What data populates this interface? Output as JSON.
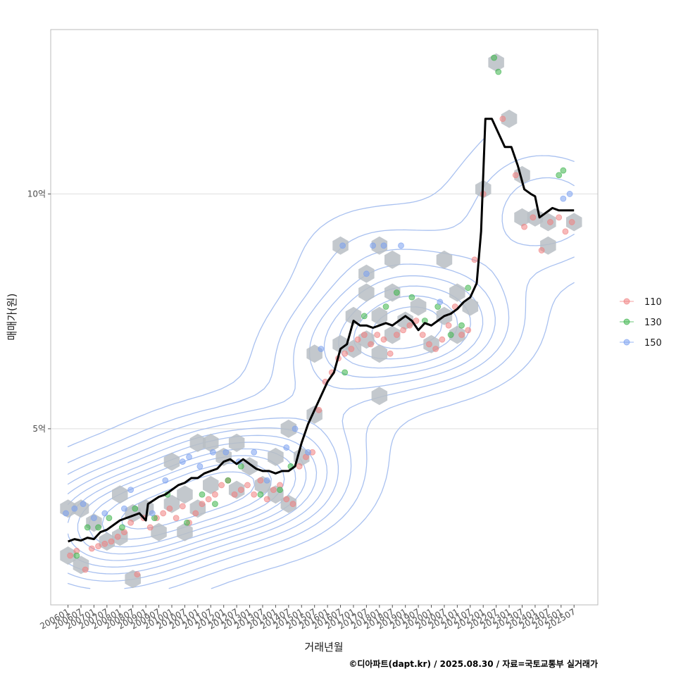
{
  "chart_data": {
    "type": "scatter",
    "xlabel": "거래년월",
    "ylabel": "매매가(원)",
    "caption": "©디아파트(dapt.kr) / 2025.08.30 / 자료=국토교통부 실거래가",
    "xlim": [
      "2005-05",
      "2026-06"
    ],
    "ylim": [
      1.25,
      13.5
    ],
    "y_ticks": [
      {
        "value": 5,
        "label": "5억"
      },
      {
        "value": 10,
        "label": "10억"
      }
    ],
    "x_tick_labels": [
      "200601",
      "200607",
      "200701",
      "200707",
      "200801",
      "200807",
      "200901",
      "200907",
      "201001",
      "201007",
      "201101",
      "201107",
      "201201",
      "201207",
      "201301",
      "201307",
      "201401",
      "201407",
      "201501",
      "201507",
      "201601",
      "201607",
      "201701",
      "201707",
      "201801",
      "201807",
      "201901",
      "201907",
      "202001",
      "202007",
      "202101",
      "202107",
      "202201",
      "202207",
      "202301",
      "202307",
      "202401",
      "202407",
      "202501",
      "202507"
    ],
    "grid": true,
    "legend": {
      "position": "right",
      "entries": [
        "110",
        "130",
        "150"
      ]
    },
    "colors": {
      "110": "#f08080",
      "130": "#3cb44b",
      "150": "#7aa0f0",
      "trend": "#000000",
      "hex": "#b9bec4",
      "contour": "#a9c1f0",
      "grid": "#dedede",
      "panel_border": "#bbbbbb"
    },
    "trend_line": [
      [
        "2006-01",
        2.6
      ],
      [
        "2006-04",
        2.65
      ],
      [
        "2006-07",
        2.62
      ],
      [
        "2006-10",
        2.68
      ],
      [
        "2007-01",
        2.65
      ],
      [
        "2007-04",
        2.8
      ],
      [
        "2007-07",
        2.85
      ],
      [
        "2007-10",
        2.95
      ],
      [
        "2008-01",
        3.05
      ],
      [
        "2008-04",
        3.1
      ],
      [
        "2008-07",
        3.15
      ],
      [
        "2008-10",
        3.2
      ],
      [
        "2009-01",
        3.05
      ],
      [
        "2009-02",
        3.4
      ],
      [
        "2009-07",
        3.55
      ],
      [
        "2009-10",
        3.6
      ],
      [
        "2010-01",
        3.7
      ],
      [
        "2010-04",
        3.8
      ],
      [
        "2010-07",
        3.85
      ],
      [
        "2010-10",
        3.95
      ],
      [
        "2011-01",
        3.95
      ],
      [
        "2011-04",
        4.05
      ],
      [
        "2011-07",
        4.1
      ],
      [
        "2011-10",
        4.15
      ],
      [
        "2012-01",
        4.3
      ],
      [
        "2012-04",
        4.35
      ],
      [
        "2012-07",
        4.25
      ],
      [
        "2012-10",
        4.35
      ],
      [
        "2013-01",
        4.25
      ],
      [
        "2013-04",
        4.15
      ],
      [
        "2013-07",
        4.1
      ],
      [
        "2013-10",
        4.1
      ],
      [
        "2014-01",
        4.05
      ],
      [
        "2014-04",
        4.1
      ],
      [
        "2014-07",
        4.1
      ],
      [
        "2014-10",
        4.2
      ],
      [
        "2015-01",
        4.7
      ],
      [
        "2015-04",
        5.1
      ],
      [
        "2015-07",
        5.4
      ],
      [
        "2015-10",
        5.7
      ],
      [
        "2016-01",
        6.0
      ],
      [
        "2016-04",
        6.2
      ],
      [
        "2016-07",
        6.7
      ],
      [
        "2016-10",
        6.8
      ],
      [
        "2017-01",
        7.3
      ],
      [
        "2017-04",
        7.2
      ],
      [
        "2017-07",
        7.2
      ],
      [
        "2017-10",
        7.15
      ],
      [
        "2018-01",
        7.2
      ],
      [
        "2018-04",
        7.25
      ],
      [
        "2018-07",
        7.2
      ],
      [
        "2018-10",
        7.3
      ],
      [
        "2019-01",
        7.4
      ],
      [
        "2019-04",
        7.3
      ],
      [
        "2019-07",
        7.1
      ],
      [
        "2019-10",
        7.25
      ],
      [
        "2020-01",
        7.2
      ],
      [
        "2020-04",
        7.3
      ],
      [
        "2020-07",
        7.4
      ],
      [
        "2020-10",
        7.45
      ],
      [
        "2021-01",
        7.55
      ],
      [
        "2021-04",
        7.7
      ],
      [
        "2021-07",
        7.8
      ],
      [
        "2021-10",
        8.1
      ],
      [
        "2021-12",
        9.2
      ],
      [
        "2022-02",
        11.6
      ],
      [
        "2022-05",
        11.6
      ],
      [
        "2022-08",
        11.3
      ],
      [
        "2022-11",
        11.0
      ],
      [
        "2023-02",
        11.0
      ],
      [
        "2023-05",
        10.6
      ],
      [
        "2023-08",
        10.1
      ],
      [
        "2023-11",
        10.0
      ],
      [
        "2024-01",
        9.95
      ],
      [
        "2024-03",
        9.5
      ],
      [
        "2024-06",
        9.6
      ],
      [
        "2024-09",
        9.7
      ],
      [
        "2024-12",
        9.65
      ],
      [
        "2025-03",
        9.65
      ],
      [
        "2025-07",
        9.65
      ]
    ],
    "hexbins": [
      [
        "2006-01",
        2.3
      ],
      [
        "2006-01",
        3.3
      ],
      [
        "2006-07",
        2.1
      ],
      [
        "2006-07",
        3.3
      ],
      [
        "2007-01",
        3.0
      ],
      [
        "2007-07",
        2.6
      ],
      [
        "2008-01",
        2.7
      ],
      [
        "2008-01",
        3.6
      ],
      [
        "2008-07",
        1.8
      ],
      [
        "2008-07",
        3.2
      ],
      [
        "2009-01",
        3.3
      ],
      [
        "2009-07",
        2.8
      ],
      [
        "2010-01",
        3.4
      ],
      [
        "2010-01",
        4.3
      ],
      [
        "2010-07",
        2.8
      ],
      [
        "2010-07",
        3.6
      ],
      [
        "2011-01",
        3.3
      ],
      [
        "2011-01",
        4.7
      ],
      [
        "2011-07",
        3.8
      ],
      [
        "2011-07",
        4.7
      ],
      [
        "2012-01",
        4.4
      ],
      [
        "2012-07",
        3.7
      ],
      [
        "2012-07",
        4.7
      ],
      [
        "2013-01",
        4.2
      ],
      [
        "2013-07",
        3.8
      ],
      [
        "2014-01",
        3.6
      ],
      [
        "2014-01",
        4.4
      ],
      [
        "2014-07",
        3.4
      ],
      [
        "2014-07",
        5.0
      ],
      [
        "2015-01",
        4.4
      ],
      [
        "2015-07",
        5.3
      ],
      [
        "2015-07",
        6.6
      ],
      [
        "2016-07",
        8.9
      ],
      [
        "2016-07",
        6.8
      ],
      [
        "2017-01",
        6.7
      ],
      [
        "2017-01",
        7.4
      ],
      [
        "2017-07",
        6.9
      ],
      [
        "2017-07",
        7.9
      ],
      [
        "2017-07",
        8.3
      ],
      [
        "2018-01",
        6.6
      ],
      [
        "2018-01",
        7.4
      ],
      [
        "2018-01",
        8.9
      ],
      [
        "2018-01",
        5.7
      ],
      [
        "2018-07",
        7.0
      ],
      [
        "2018-07",
        7.9
      ],
      [
        "2018-07",
        8.6
      ],
      [
        "2019-01",
        7.3
      ],
      [
        "2019-07",
        7.6
      ],
      [
        "2020-01",
        6.8
      ],
      [
        "2020-07",
        7.4
      ],
      [
        "2020-07",
        8.6
      ],
      [
        "2021-01",
        7.0
      ],
      [
        "2021-01",
        7.9
      ],
      [
        "2021-07",
        7.6
      ],
      [
        "2022-01",
        10.1
      ],
      [
        "2022-07",
        12.8
      ],
      [
        "2023-01",
        11.6
      ],
      [
        "2023-07",
        10.4
      ],
      [
        "2023-07",
        9.5
      ],
      [
        "2024-01",
        9.5
      ],
      [
        "2024-07",
        8.9
      ],
      [
        "2024-07",
        9.4
      ],
      [
        "2025-07",
        9.4
      ]
    ],
    "series": [
      {
        "name": "110",
        "points": [
          [
            "2006-02",
            2.3
          ],
          [
            "2006-05",
            2.4
          ],
          [
            "2006-09",
            2.0
          ],
          [
            "2006-12",
            2.45
          ],
          [
            "2007-03",
            2.5
          ],
          [
            "2007-06",
            2.55
          ],
          [
            "2007-09",
            2.6
          ],
          [
            "2007-12",
            2.7
          ],
          [
            "2008-03",
            2.8
          ],
          [
            "2008-06",
            3.0
          ],
          [
            "2008-09",
            1.9
          ],
          [
            "2008-12",
            3.1
          ],
          [
            "2009-03",
            2.9
          ],
          [
            "2009-06",
            3.1
          ],
          [
            "2009-09",
            3.2
          ],
          [
            "2009-12",
            3.3
          ],
          [
            "2010-03",
            3.1
          ],
          [
            "2010-06",
            3.35
          ],
          [
            "2010-09",
            3.0
          ],
          [
            "2010-12",
            3.2
          ],
          [
            "2011-03",
            3.4
          ],
          [
            "2011-06",
            3.5
          ],
          [
            "2011-09",
            3.6
          ],
          [
            "2011-12",
            3.8
          ],
          [
            "2012-03",
            3.9
          ],
          [
            "2012-06",
            3.6
          ],
          [
            "2012-09",
            3.7
          ],
          [
            "2012-12",
            3.8
          ],
          [
            "2013-03",
            3.6
          ],
          [
            "2013-06",
            3.9
          ],
          [
            "2013-09",
            3.5
          ],
          [
            "2013-12",
            3.7
          ],
          [
            "2014-03",
            3.8
          ],
          [
            "2014-06",
            3.5
          ],
          [
            "2014-09",
            3.4
          ],
          [
            "2014-12",
            4.2
          ],
          [
            "2015-03",
            4.4
          ],
          [
            "2015-06",
            4.5
          ],
          [
            "2015-09",
            5.4
          ],
          [
            "2015-12",
            6.0
          ],
          [
            "2016-03",
            6.2
          ],
          [
            "2016-06",
            6.5
          ],
          [
            "2016-09",
            6.6
          ],
          [
            "2016-12",
            6.7
          ],
          [
            "2017-03",
            6.9
          ],
          [
            "2017-06",
            7.0
          ],
          [
            "2017-09",
            6.8
          ],
          [
            "2017-12",
            7.0
          ],
          [
            "2018-03",
            6.9
          ],
          [
            "2018-06",
            6.6
          ],
          [
            "2018-09",
            7.0
          ],
          [
            "2018-12",
            7.1
          ],
          [
            "2019-03",
            7.2
          ],
          [
            "2019-06",
            7.3
          ],
          [
            "2019-09",
            7.0
          ],
          [
            "2019-12",
            6.8
          ],
          [
            "2020-03",
            6.7
          ],
          [
            "2020-06",
            6.9
          ],
          [
            "2020-09",
            7.2
          ],
          [
            "2020-12",
            7.6
          ],
          [
            "2021-03",
            7.0
          ],
          [
            "2021-06",
            7.1
          ],
          [
            "2021-09",
            8.6
          ],
          [
            "2022-01",
            10.0
          ],
          [
            "2022-10",
            11.6
          ],
          [
            "2023-04",
            10.4
          ],
          [
            "2023-08",
            9.3
          ],
          [
            "2023-12",
            9.5
          ],
          [
            "2024-04",
            8.8
          ],
          [
            "2024-08",
            9.4
          ],
          [
            "2024-12",
            9.5
          ],
          [
            "2025-03",
            9.2
          ],
          [
            "2025-06",
            9.4
          ]
        ]
      },
      {
        "name": "130",
        "points": [
          [
            "2006-05",
            2.3
          ],
          [
            "2006-10",
            2.9
          ],
          [
            "2007-03",
            2.9
          ],
          [
            "2007-08",
            3.1
          ],
          [
            "2008-02",
            2.9
          ],
          [
            "2008-08",
            3.3
          ],
          [
            "2009-05",
            3.1
          ],
          [
            "2009-11",
            3.6
          ],
          [
            "2010-08",
            3.0
          ],
          [
            "2011-03",
            3.6
          ],
          [
            "2011-09",
            3.4
          ],
          [
            "2012-03",
            3.9
          ],
          [
            "2012-09",
            4.2
          ],
          [
            "2013-06",
            3.6
          ],
          [
            "2014-03",
            3.7
          ],
          [
            "2014-08",
            4.2
          ],
          [
            "2016-09",
            6.2
          ],
          [
            "2017-06",
            7.4
          ],
          [
            "2018-04",
            7.6
          ],
          [
            "2018-09",
            7.9
          ],
          [
            "2019-04",
            7.8
          ],
          [
            "2019-10",
            7.3
          ],
          [
            "2020-04",
            7.6
          ],
          [
            "2020-10",
            7.0
          ],
          [
            "2021-03",
            7.2
          ],
          [
            "2021-06",
            8.0
          ],
          [
            "2022-06",
            12.9
          ],
          [
            "2022-08",
            12.6
          ],
          [
            "2024-12",
            10.4
          ],
          [
            "2025-02",
            10.5
          ]
        ]
      },
      {
        "name": "150",
        "points": [
          [
            "2005-12",
            3.2
          ],
          [
            "2006-04",
            3.3
          ],
          [
            "2006-08",
            3.4
          ],
          [
            "2007-01",
            3.1
          ],
          [
            "2007-06",
            3.2
          ],
          [
            "2008-03",
            3.3
          ],
          [
            "2008-06",
            3.7
          ],
          [
            "2009-04",
            3.2
          ],
          [
            "2009-10",
            3.9
          ],
          [
            "2010-06",
            4.3
          ],
          [
            "2010-09",
            4.4
          ],
          [
            "2011-02",
            4.2
          ],
          [
            "2011-08",
            4.5
          ],
          [
            "2012-02",
            4.5
          ],
          [
            "2012-08",
            4.3
          ],
          [
            "2013-03",
            4.5
          ],
          [
            "2013-09",
            3.9
          ],
          [
            "2014-06",
            4.6
          ],
          [
            "2014-10",
            5.0
          ],
          [
            "2015-04",
            4.5
          ],
          [
            "2015-10",
            6.7
          ],
          [
            "2016-08",
            8.9
          ],
          [
            "2017-07",
            8.3
          ],
          [
            "2017-10",
            8.9
          ],
          [
            "2018-03",
            8.9
          ],
          [
            "2018-11",
            8.9
          ],
          [
            "2020-05",
            7.7
          ],
          [
            "2025-02",
            9.9
          ],
          [
            "2025-05",
            10.0
          ]
        ]
      }
    ]
  }
}
